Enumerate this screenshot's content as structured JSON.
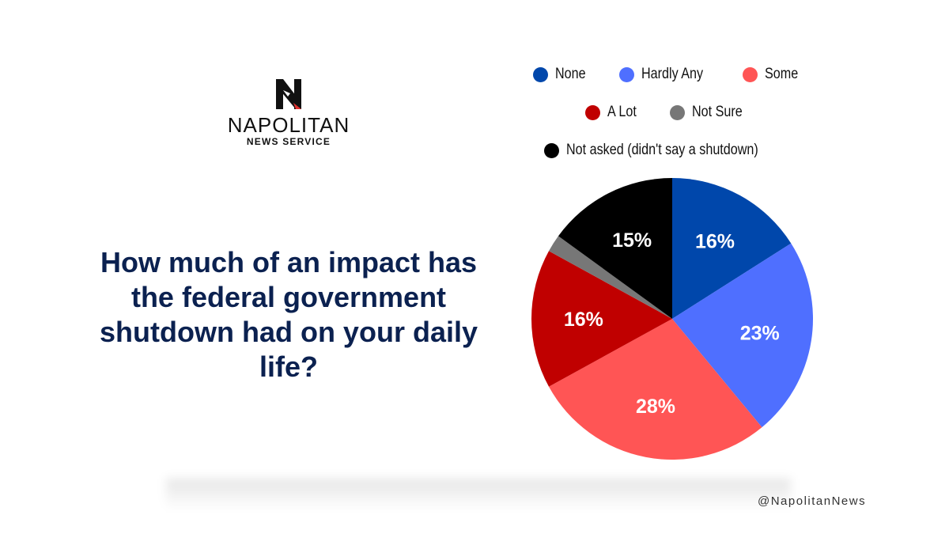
{
  "logo": {
    "name": "NAPOLITAN",
    "subtitle": "NEWS SERVICE"
  },
  "question": "How much of an impact has the federal government shutdown had on your daily life?",
  "handle": "@NapolitanNews",
  "colors": {
    "none": "#0047ab",
    "hardly_any": "#4f6fff",
    "some": "#ff5555",
    "a_lot": "#c00000",
    "not_sure": "#777777",
    "not_asked": "#000000",
    "question_text": "#0b2150"
  },
  "chart_data": {
    "type": "pie",
    "legend_position": "top",
    "series": [
      {
        "name": "None",
        "value": 16,
        "label": "16%",
        "color": "#0047ab"
      },
      {
        "name": "Hardly Any",
        "value": 23,
        "label": "23%",
        "color": "#4f6fff"
      },
      {
        "name": "Some",
        "value": 28,
        "label": "28%",
        "color": "#ff5555"
      },
      {
        "name": "A Lot",
        "value": 16,
        "label": "16%",
        "color": "#c00000"
      },
      {
        "name": "Not Sure",
        "value": 2,
        "label": "",
        "color": "#777777"
      },
      {
        "name": "Not asked (didn't say a shutdown)",
        "value": 15,
        "label": "15%",
        "color": "#000000"
      }
    ]
  }
}
